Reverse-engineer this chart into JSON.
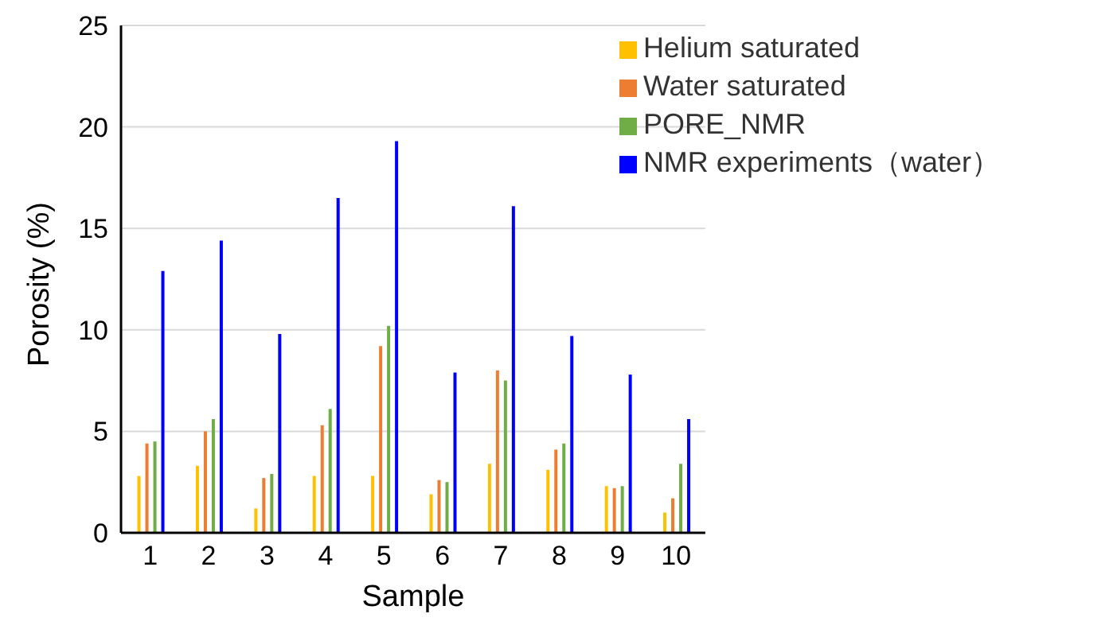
{
  "chart_data": {
    "type": "bar",
    "xlabel": "Sample",
    "ylabel": "Porosity (%)",
    "categories": [
      "1",
      "2",
      "3",
      "4",
      "5",
      "6",
      "7",
      "8",
      "9",
      "10"
    ],
    "series": [
      {
        "name": "Helium saturated",
        "color": "#ffc000",
        "values": [
          2.8,
          3.3,
          1.2,
          2.8,
          2.8,
          1.9,
          3.4,
          3.1,
          2.3,
          1.0
        ]
      },
      {
        "name": "Water saturated",
        "color": "#ed7d31",
        "values": [
          4.4,
          5.0,
          2.7,
          5.3,
          9.2,
          2.6,
          8.0,
          4.1,
          2.2,
          1.7
        ]
      },
      {
        "name": "PORE_NMR",
        "color": "#70ad47",
        "values": [
          4.5,
          5.6,
          2.9,
          6.1,
          10.2,
          2.5,
          7.5,
          4.4,
          2.3,
          3.4
        ]
      },
      {
        "name": "NMR experiments（water）",
        "color": "#0000ff",
        "values": [
          12.9,
          14.4,
          9.8,
          16.5,
          19.3,
          7.9,
          16.1,
          9.7,
          7.8,
          5.6
        ]
      }
    ],
    "ylim": [
      0,
      25
    ],
    "yticks": [
      0,
      5,
      10,
      15,
      20,
      25
    ],
    "grid": "y",
    "legend": "top right"
  }
}
